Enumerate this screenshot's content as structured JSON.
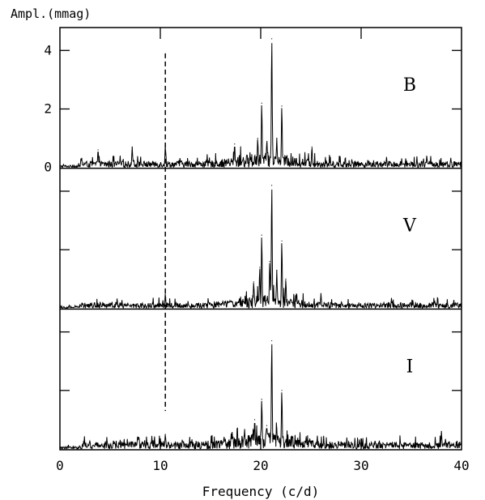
{
  "chart_data": {
    "type": "line",
    "ylabel": "Ampl.(mmag)",
    "xlabel": "Frequency (c/d)",
    "xlim": [
      0,
      40
    ],
    "x_ticks": [
      0,
      10,
      20,
      30,
      40
    ],
    "y_ticks": [
      0,
      2,
      4
    ],
    "ylim": [
      0,
      4.7
    ],
    "grid": false,
    "marker_line": {
      "x": 10.5,
      "style": "dashed",
      "y_top": 3.9,
      "y_bottom": 1.3
    },
    "panels": [
      {
        "band": "B",
        "noise_level": 0.25,
        "peaks": [
          {
            "x": 21.1,
            "y": 4.4
          },
          {
            "x": 20.1,
            "y": 2.2
          },
          {
            "x": 22.1,
            "y": 2.1
          },
          {
            "x": 19.7,
            "y": 1.0
          },
          {
            "x": 21.6,
            "y": 1.0
          },
          {
            "x": 20.6,
            "y": 0.8
          },
          {
            "x": 25.1,
            "y": 0.7
          },
          {
            "x": 17.4,
            "y": 0.8
          },
          {
            "x": 3.8,
            "y": 0.6
          },
          {
            "x": 7.2,
            "y": 0.7
          },
          {
            "x": 10.5,
            "y": 0.75
          }
        ]
      },
      {
        "band": "V",
        "noise_level": 0.22,
        "peaks": [
          {
            "x": 21.1,
            "y": 4.2
          },
          {
            "x": 20.1,
            "y": 2.5
          },
          {
            "x": 22.1,
            "y": 2.3
          },
          {
            "x": 20.9,
            "y": 1.6
          },
          {
            "x": 19.9,
            "y": 1.4
          },
          {
            "x": 21.6,
            "y": 1.3
          },
          {
            "x": 22.5,
            "y": 1.0
          },
          {
            "x": 19.3,
            "y": 0.9
          },
          {
            "x": 26.0,
            "y": 0.5
          },
          {
            "x": 10.5,
            "y": 0.5
          }
        ]
      },
      {
        "band": "I",
        "noise_level": 0.28,
        "peaks": [
          {
            "x": 21.1,
            "y": 3.7
          },
          {
            "x": 20.1,
            "y": 1.7
          },
          {
            "x": 22.1,
            "y": 2.0
          },
          {
            "x": 19.4,
            "y": 1.0
          },
          {
            "x": 20.6,
            "y": 0.8
          },
          {
            "x": 21.6,
            "y": 0.7
          },
          {
            "x": 38.0,
            "y": 0.6
          },
          {
            "x": 10.5,
            "y": 0.5
          }
        ]
      }
    ]
  }
}
